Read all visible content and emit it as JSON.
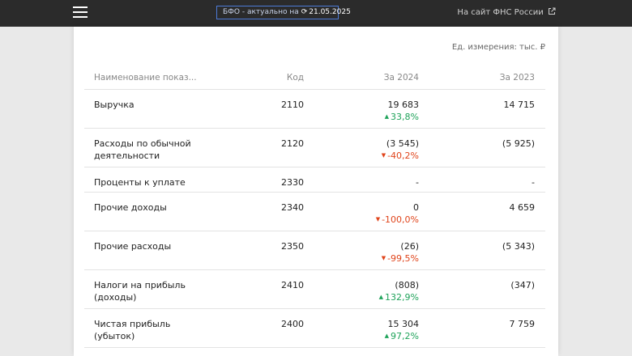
{
  "header": {
    "badge_prefix": "БФО - актуально на",
    "badge_date": "21.05.2025",
    "external_link": "На сайт ФНС России"
  },
  "units": "Ед. измерения: тыс. ₽",
  "table": {
    "columns": [
      "Наименование показ...",
      "Код",
      "За 2024",
      "За 2023"
    ],
    "rows": [
      {
        "name": "Выручка",
        "code": "2110",
        "y2024": "19 683",
        "change": "33,8%",
        "direction": "up",
        "y2023": "14 715"
      },
      {
        "name": "Расходы по обычной деятельности",
        "code": "2120",
        "y2024": "(3 545)",
        "change": "-40,2%",
        "direction": "down",
        "y2023": "(5 925)"
      },
      {
        "name": "Проценты к уплате",
        "code": "2330",
        "y2024": "-",
        "change": "",
        "direction": "",
        "y2023": "-"
      },
      {
        "name": "Прочие доходы",
        "code": "2340",
        "y2024": "0",
        "change": "-100,0%",
        "direction": "down",
        "y2023": "4 659"
      },
      {
        "name": "Прочие расходы",
        "code": "2350",
        "y2024": "(26)",
        "change": "-99,5%",
        "direction": "down",
        "y2023": "(5 343)"
      },
      {
        "name": "Налоги на прибыль (доходы)",
        "code": "2410",
        "y2024": "(808)",
        "change": "132,9%",
        "direction": "up",
        "y2023": "(347)"
      },
      {
        "name": "Чистая прибыль (убыток)",
        "code": "2400",
        "y2024": "15 304",
        "change": "97,2%",
        "direction": "up",
        "y2023": "7 759"
      }
    ]
  }
}
